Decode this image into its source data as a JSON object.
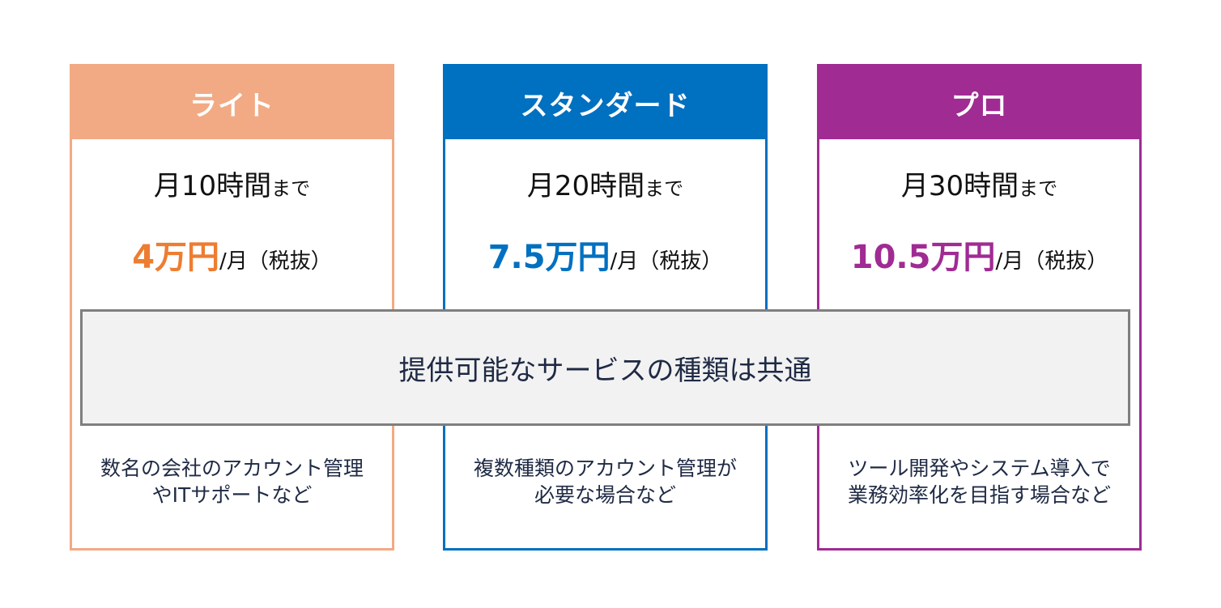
{
  "colors": {
    "lite": "#f2aa84",
    "lite_accent": "#ed7d31",
    "standard": "#0070c0",
    "standard_accent": "#0070c0",
    "pro": "#a02b93",
    "pro_accent": "#a02b93",
    "band_bg": "#f2f2f2",
    "band_border": "#7f7f7f"
  },
  "plans": [
    {
      "name": "ライト",
      "hours": "月10時間",
      "hours_suffix": "まで",
      "price": "4万円",
      "price_unit": "/月（税抜）",
      "desc_line1": "数名の会社のアカウント管理",
      "desc_line2": "やITサポートなど"
    },
    {
      "name": "スタンダード",
      "hours": "月20時間",
      "hours_suffix": "まで",
      "price": "7.5万円",
      "price_unit": "/月（税抜）",
      "desc_line1": "複数種類のアカウント管理が",
      "desc_line2": "必要な場合など"
    },
    {
      "name": "プロ",
      "hours": "月30時間",
      "hours_suffix": "まで",
      "price": "10.5万円",
      "price_unit": "/月（税抜）",
      "desc_line1": "ツール開発やシステム導入で",
      "desc_line2": "業務効率化を目指す場合など"
    }
  ],
  "common_band": {
    "text": "提供可能なサービスの種類は共通"
  }
}
